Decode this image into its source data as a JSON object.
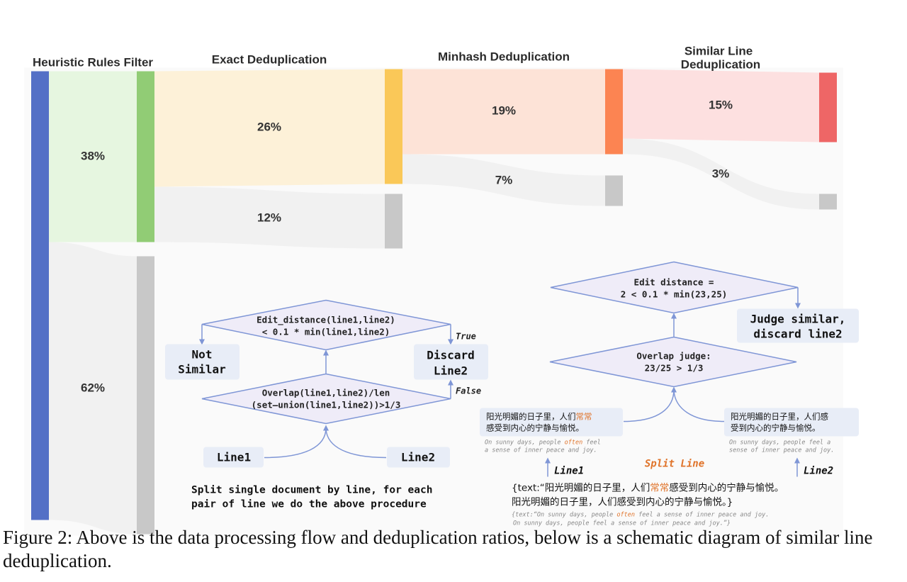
{
  "stages": {
    "heuristic": "Heuristic Rules Filter",
    "exact": "Exact Deduplication",
    "minhash": "Minhash Deduplication",
    "similar_line_1": "Similar Line",
    "similar_line_2": "Deduplication"
  },
  "percentages": {
    "heuristic_keep": "38%",
    "heuristic_remove": "62%",
    "exact_keep": "26%",
    "exact_remove": "12%",
    "minhash_keep": "19%",
    "minhash_remove": "7%",
    "similar_keep": "15%",
    "similar_remove": "3%"
  },
  "flow_values": {
    "heuristic_keep": 38,
    "heuristic_remove": 62,
    "exact_keep": 26,
    "exact_remove": 12,
    "minhash_keep": 19,
    "minhash_remove": 7,
    "similar_keep": 15,
    "similar_remove": 3
  },
  "colors": {
    "source_bar": "#5470c6",
    "heuristic_bar": "#91cc75",
    "exact_bar": "#fac858",
    "minhash_bar": "#fc8452",
    "similar_bar": "#ee6666",
    "removed_bar": "#c8c8c8",
    "link_green": "#e6f6e0",
    "link_yellow": "#fdf1d8",
    "link_orange": "#fde3d7",
    "link_red": "#fde0e0",
    "link_gray": "#f1f1f1",
    "diamond_fill": "#efecf8",
    "diamond_stroke": "#7f96d6",
    "box_fill": "#e8edf7",
    "accent_orange": "#e0742b"
  },
  "left_diagram": {
    "top_diamond_line1": "Edit_distance(line1,line2)",
    "top_diamond_line2": "< 0.1 * min(line1,line2)",
    "not_similar_line1": "Not",
    "not_similar_line2": "Similar",
    "discard_line1": "Discard",
    "discard_line2": "Line2",
    "true_label": "True",
    "false_label": "False",
    "bottom_diamond_line1": "Overlap(line1,line2)/len",
    "bottom_diamond_line2": "(set–union(line1,line2))>1/3",
    "line1_box": "Line1",
    "line2_box": "Line2",
    "description_line1": "Split single document by line, for each",
    "description_line2": "pair of line we do the above procedure"
  },
  "right_diagram": {
    "edit_diamond_line1": "Edit distance =",
    "edit_diamond_line2": "2 < 0.1 * min(23,25)",
    "judge_line1": "Judge similar,",
    "judge_line2": "discard line2",
    "overlap_line1": "Overlap judge:",
    "overlap_line2": "23/25 > 1/3",
    "left_box_cn_a": "阳光明媚的日子里，人们",
    "left_box_cn_highlight": "常常",
    "left_box_cn_line2": "感受到内心的宁静与愉悦。",
    "left_en_a": "On sunny days, people ",
    "left_en_highlight": "often",
    "left_en_b": " feel",
    "left_en_line2": "a sense of inner peace and joy.",
    "right_box_cn_line1": "阳光明媚的日子里，人们感",
    "right_box_cn_line2": "受到内心的宁静与愉悦。",
    "right_en_line1": "On sunny days, people feel a",
    "right_en_line2": "sense of inner peace and joy.",
    "line1_label": "Line1",
    "line2_label": "Line2",
    "split_line_label": "Split Line",
    "text_prefix": "{text:“阳光明媚的日子里，人们",
    "text_highlight": "常常",
    "text_suffix": "感受到内心的宁静与愉悦。",
    "text_line2": "阳光明媚的日子里，人们感受到内心的宁静与愉悦。}",
    "en_text_prefix": "{text:“On sunny days, people ",
    "en_text_highlight": "often",
    "en_text_suffix": " feel a sense of inner peace and joy.",
    "en_text_line2": "On sunny days, people feel a sense of inner peace and joy.”}"
  },
  "caption": "Figure 2: Above is the data processing flow and deduplication ratios, below is a schematic diagram of similar line deduplication."
}
